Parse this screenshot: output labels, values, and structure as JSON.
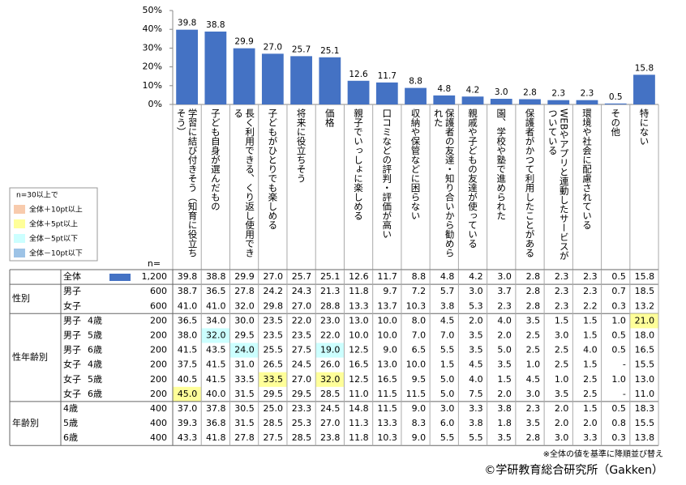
{
  "chart_data": {
    "type": "bar",
    "categories": [
      "学習に結び付きそう（知育に役立ちそう）",
      "子ども自身が選んだもの",
      "長く利用できる、くり返し使用できる",
      "子どもがひとりでも楽しめる",
      "将来に役立ちそう",
      "価格",
      "親子でいっしょに楽しめる",
      "口コミなどの評判・評価が高い",
      "収納や保管などに困らない",
      "保護者の友達・知り合いから勧められた",
      "親戚や子どもの友達が使っている",
      "園、学校や塾で進められた",
      "保護者がかつて利用したことがある",
      "WEBやアプリと連動したサービスがついている",
      "環境や社会に配慮されている",
      "その他",
      "特にない"
    ],
    "values": [
      39.8,
      38.8,
      29.9,
      27.0,
      25.7,
      25.1,
      12.6,
      11.7,
      8.8,
      4.8,
      4.2,
      3.0,
      2.8,
      2.3,
      2.3,
      0.5,
      15.8
    ],
    "value_labels": [
      "39.8",
      "38.8",
      "29.9",
      "27.0",
      "25.7",
      "25.1",
      "12.6",
      "11.7",
      "8.8",
      "4.8",
      "4.2",
      "3.0",
      "2.8",
      "2.3",
      "2.3",
      "0.5",
      "15.8"
    ],
    "color": "#4472c4",
    "ylim": [
      0,
      50
    ],
    "yticks": [
      {
        "value": 0,
        "label": "0%"
      },
      {
        "value": 10,
        "label": "10%"
      },
      {
        "value": 20,
        "label": "20%"
      },
      {
        "value": 30,
        "label": "30%"
      },
      {
        "value": 40,
        "label": "40%"
      },
      {
        "value": 50,
        "label": "50%"
      }
    ]
  },
  "legend": {
    "title": "n=30以上で",
    "items": [
      {
        "label": "全体＋10pt以上",
        "color": "#f8cbad"
      },
      {
        "label": "全体＋5pt以上",
        "color": "#ffff99"
      },
      {
        "label": "全体－5pt以下",
        "color": "#ccffff"
      },
      {
        "label": "全体－10pt以下",
        "color": "#9dc3e6"
      }
    ]
  },
  "table": {
    "n_header": "n=",
    "groups": [
      {
        "rows": [
          {
            "label": "全体",
            "n": "1,200",
            "cells": [
              "39.8",
              "38.8",
              "29.9",
              "27.0",
              "25.7",
              "25.1",
              "12.6",
              "11.7",
              "8.8",
              "4.8",
              "4.2",
              "3.0",
              "2.8",
              "2.3",
              "2.3",
              "0.5",
              "15.8"
            ]
          }
        ]
      },
      {
        "label": "性別",
        "rows": [
          {
            "label": "男子",
            "n": "600",
            "cells": [
              "38.7",
              "36.5",
              "27.8",
              "24.2",
              "24.3",
              "21.3",
              "11.8",
              "9.7",
              "7.2",
              "5.7",
              "3.0",
              "3.7",
              "2.8",
              "2.3",
              "2.3",
              "0.7",
              "18.5"
            ]
          },
          {
            "label": "女子",
            "n": "600",
            "cells": [
              "41.0",
              "41.0",
              "32.0",
              "29.8",
              "27.0",
              "28.8",
              "13.3",
              "13.7",
              "10.3",
              "3.8",
              "5.3",
              "2.3",
              "2.8",
              "2.3",
              "2.2",
              "0.3",
              "13.2"
            ]
          }
        ]
      },
      {
        "label": "性年齢別",
        "rows": [
          {
            "label": "男子",
            "age": "4歳",
            "n": "200",
            "cells": [
              "36.5",
              "34.0",
              "30.0",
              "23.5",
              "22.0",
              "23.0",
              "13.0",
              "10.0",
              "8.0",
              "4.5",
              "2.0",
              "4.0",
              "3.5",
              "1.5",
              "1.5",
              "1.0",
              "21.0"
            ],
            "highlights": [
              {
                "col": 16,
                "legend": 1
              }
            ]
          },
          {
            "label": "男子",
            "age": "5歳",
            "n": "200",
            "cells": [
              "38.0",
              "32.0",
              "29.5",
              "23.5",
              "23.5",
              "22.0",
              "10.0",
              "10.0",
              "7.0",
              "7.0",
              "3.5",
              "2.0",
              "2.5",
              "3.0",
              "1.5",
              "0.5",
              "18.0"
            ],
            "highlights": [
              {
                "col": 1,
                "legend": 2
              }
            ]
          },
          {
            "label": "男子",
            "age": "6歳",
            "n": "200",
            "cells": [
              "41.5",
              "43.5",
              "24.0",
              "25.5",
              "27.5",
              "19.0",
              "12.5",
              "9.0",
              "6.5",
              "5.5",
              "3.5",
              "5.0",
              "2.5",
              "2.5",
              "4.0",
              "0.5",
              "16.5"
            ],
            "highlights": [
              {
                "col": 2,
                "legend": 2
              },
              {
                "col": 5,
                "legend": 2
              }
            ]
          },
          {
            "label": "女子",
            "age": "4歳",
            "n": "200",
            "cells": [
              "37.5",
              "41.5",
              "31.0",
              "26.5",
              "24.5",
              "26.0",
              "16.5",
              "13.0",
              "10.0",
              "1.5",
              "4.5",
              "3.5",
              "1.0",
              "2.5",
              "1.5",
              "-",
              "15.5"
            ]
          },
          {
            "label": "女子",
            "age": "5歳",
            "n": "200",
            "cells": [
              "40.5",
              "41.5",
              "33.5",
              "33.5",
              "27.0",
              "32.0",
              "12.5",
              "16.5",
              "9.5",
              "5.0",
              "4.0",
              "1.5",
              "4.5",
              "1.0",
              "2.5",
              "1.0",
              "13.0"
            ],
            "highlights": [
              {
                "col": 3,
                "legend": 1
              },
              {
                "col": 5,
                "legend": 1
              }
            ]
          },
          {
            "label": "女子",
            "age": "6歳",
            "n": "200",
            "cells": [
              "45.0",
              "40.0",
              "31.5",
              "29.5",
              "29.5",
              "28.5",
              "11.0",
              "11.5",
              "11.5",
              "5.0",
              "7.5",
              "2.0",
              "3.0",
              "3.5",
              "2.5",
              "-",
              "11.0"
            ],
            "highlights": [
              {
                "col": 0,
                "legend": 1
              }
            ]
          }
        ]
      },
      {
        "label": "年齢別",
        "rows": [
          {
            "label": "4歳",
            "n": "400",
            "cells": [
              "37.0",
              "37.8",
              "30.5",
              "25.0",
              "23.3",
              "24.5",
              "14.8",
              "11.5",
              "9.0",
              "3.0",
              "3.3",
              "3.8",
              "2.3",
              "2.0",
              "1.5",
              "0.5",
              "18.3"
            ]
          },
          {
            "label": "5歳",
            "n": "400",
            "cells": [
              "39.3",
              "36.8",
              "31.5",
              "28.5",
              "25.3",
              "27.0",
              "11.3",
              "13.3",
              "8.3",
              "6.0",
              "3.8",
              "1.8",
              "3.5",
              "2.0",
              "2.0",
              "0.8",
              "15.5"
            ]
          },
          {
            "label": "6歳",
            "n": "400",
            "cells": [
              "43.3",
              "41.8",
              "27.8",
              "27.5",
              "28.5",
              "23.8",
              "11.8",
              "10.3",
              "9.0",
              "5.5",
              "5.5",
              "3.5",
              "2.8",
              "3.0",
              "3.3",
              "0.3",
              "13.8"
            ]
          }
        ]
      }
    ]
  },
  "footnote": "※全体の値を基準に降順並び替え",
  "copyright": "©学研教育総合研究所（Gakken）"
}
